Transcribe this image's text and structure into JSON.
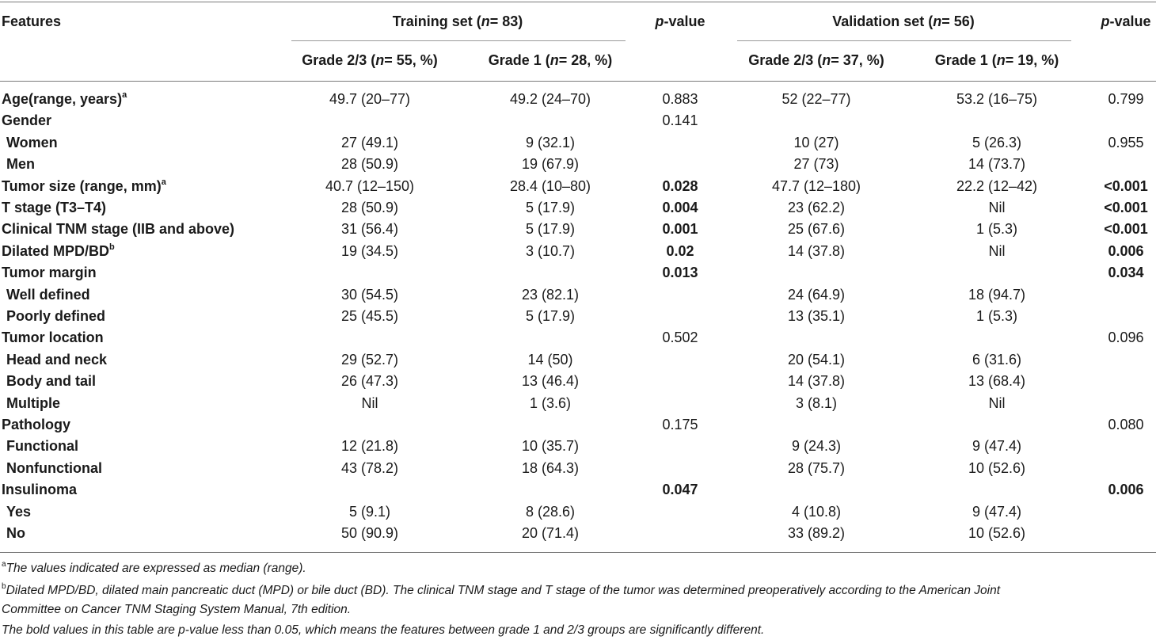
{
  "table": {
    "header": {
      "features": "Features",
      "training_group": "Training set (",
      "training_n": "n",
      "training_rest": " = 83)",
      "validation_group": "Validation set (",
      "validation_n": "n",
      "validation_rest": " = 56)",
      "p_italic": "p",
      "p_rest": "-value",
      "train_g23_a": "Grade 2/3 (",
      "train_g23_n": "n",
      "train_g23_b": " = 55, %)",
      "train_g1_a": "Grade 1 (",
      "train_g1_n": "n",
      "train_g1_b": " = 28, %)",
      "val_g23_a": "Grade 2/3 (",
      "val_g23_n": "n",
      "val_g23_b": " = 37, %)",
      "val_g1_a": "Grade 1 (",
      "val_g1_n": "n",
      "val_g1_b": " = 19, %)"
    },
    "rows": [
      {
        "feature": "Age(range, years)",
        "sup": "a",
        "t23": "49.7 (20–77)",
        "t1": "49.2 (24–70)",
        "tp": "0.883",
        "tp_bold": false,
        "v23": "52 (22–77)",
        "v1": "53.2 (16–75)",
        "vp": "0.799",
        "vp_bold": false
      },
      {
        "feature": "Gender",
        "sup": "",
        "t23": "",
        "t1": "",
        "tp": "0.141",
        "tp_bold": false,
        "v23": "",
        "v1": "",
        "vp": "",
        "vp_bold": false
      },
      {
        "feature": " Women",
        "sup": "",
        "t23": "27 (49.1)",
        "t1": "9 (32.1)",
        "tp": "",
        "tp_bold": false,
        "v23": "10 (27)",
        "v1": "5 (26.3)",
        "vp": "0.955",
        "vp_bold": false
      },
      {
        "feature": " Men",
        "sup": "",
        "t23": "28 (50.9)",
        "t1": "19 (67.9)",
        "tp": "",
        "tp_bold": false,
        "v23": "27 (73)",
        "v1": "14 (73.7)",
        "vp": "",
        "vp_bold": false
      },
      {
        "feature": "Tumor size (range, mm)",
        "sup": "a",
        "t23": "40.7 (12–150)",
        "t1": "28.4 (10–80)",
        "tp": "0.028",
        "tp_bold": true,
        "v23": "47.7 (12–180)",
        "v1": "22.2 (12–42)",
        "vp": "<0.001",
        "vp_bold": true
      },
      {
        "feature": "T stage (T3–T4)",
        "sup": "",
        "t23": "28 (50.9)",
        "t1": "5 (17.9)",
        "tp": "0.004",
        "tp_bold": true,
        "v23": "23 (62.2)",
        "v1": "Nil",
        "vp": "<0.001",
        "vp_bold": true
      },
      {
        "feature": "Clinical TNM stage (IIB and above)",
        "sup": "",
        "t23": "31 (56.4)",
        "t1": "5 (17.9)",
        "tp": "0.001",
        "tp_bold": true,
        "v23": "25 (67.6)",
        "v1": "1 (5.3)",
        "vp": "<0.001",
        "vp_bold": true
      },
      {
        "feature": "Dilated MPD/BD",
        "sup": "b",
        "t23": "19 (34.5)",
        "t1": "3 (10.7)",
        "tp": "0.02",
        "tp_bold": true,
        "v23": "14 (37.8)",
        "v1": "Nil",
        "vp": "0.006",
        "vp_bold": true
      },
      {
        "feature": "Tumor margin",
        "sup": "",
        "t23": "",
        "t1": "",
        "tp": "0.013",
        "tp_bold": true,
        "v23": "",
        "v1": "",
        "vp": "0.034",
        "vp_bold": true
      },
      {
        "feature": " Well defined",
        "sup": "",
        "t23": "30 (54.5)",
        "t1": "23 (82.1)",
        "tp": "",
        "tp_bold": false,
        "v23": "24 (64.9)",
        "v1": "18 (94.7)",
        "vp": "",
        "vp_bold": false
      },
      {
        "feature": " Poorly defined",
        "sup": "",
        "t23": "25 (45.5)",
        "t1": "5 (17.9)",
        "tp": "",
        "tp_bold": false,
        "v23": "13 (35.1)",
        "v1": "1 (5.3)",
        "vp": "",
        "vp_bold": false
      },
      {
        "feature": "Tumor location",
        "sup": "",
        "t23": "",
        "t1": "",
        "tp": "0.502",
        "tp_bold": false,
        "v23": "",
        "v1": "",
        "vp": "0.096",
        "vp_bold": false
      },
      {
        "feature": " Head and neck",
        "sup": "",
        "t23": "29 (52.7)",
        "t1": "14 (50)",
        "tp": "",
        "tp_bold": false,
        "v23": "20 (54.1)",
        "v1": "6 (31.6)",
        "vp": "",
        "vp_bold": false
      },
      {
        "feature": " Body and tail",
        "sup": "",
        "t23": "26 (47.3)",
        "t1": "13 (46.4)",
        "tp": "",
        "tp_bold": false,
        "v23": "14 (37.8)",
        "v1": "13 (68.4)",
        "vp": "",
        "vp_bold": false
      },
      {
        "feature": " Multiple",
        "sup": "",
        "t23": "Nil",
        "t1": "1 (3.6)",
        "tp": "",
        "tp_bold": false,
        "v23": "3 (8.1)",
        "v1": "Nil",
        "vp": "",
        "vp_bold": false
      },
      {
        "feature": "Pathology",
        "sup": "",
        "t23": "",
        "t1": "",
        "tp": "0.175",
        "tp_bold": false,
        "v23": "",
        "v1": "",
        "vp": "0.080",
        "vp_bold": false
      },
      {
        "feature": " Functional",
        "sup": "",
        "t23": "12 (21.8)",
        "t1": "10 (35.7)",
        "tp": "",
        "tp_bold": false,
        "v23": "9 (24.3)",
        "v1": "9 (47.4)",
        "vp": "",
        "vp_bold": false
      },
      {
        "feature": " Nonfunctional",
        "sup": "",
        "t23": "43 (78.2)",
        "t1": "18 (64.3)",
        "tp": "",
        "tp_bold": false,
        "v23": "28 (75.7)",
        "v1": "10 (52.6)",
        "vp": "",
        "vp_bold": false
      },
      {
        "feature": "Insulinoma",
        "sup": "",
        "t23": "",
        "t1": "",
        "tp": "0.047",
        "tp_bold": true,
        "v23": "",
        "v1": "",
        "vp": "0.006",
        "vp_bold": true
      },
      {
        "feature": " Yes",
        "sup": "",
        "t23": "5 (9.1)",
        "t1": "8 (28.6)",
        "tp": "",
        "tp_bold": false,
        "v23": "4 (10.8)",
        "v1": "9 (47.4)",
        "vp": "",
        "vp_bold": false
      },
      {
        "feature": " No",
        "sup": "",
        "t23": "50 (90.9)",
        "t1": "20 (71.4)",
        "tp": "",
        "tp_bold": false,
        "v23": "33 (89.2)",
        "v1": "10 (52.6)",
        "vp": "",
        "vp_bold": false
      }
    ]
  },
  "footnotes": {
    "a_sup": "a",
    "a_text": "The values indicated are expressed as median (range).",
    "b_sup": "b",
    "b_text_line1": "Dilated MPD/BD, dilated main pancreatic duct (MPD) or bile duct (BD). The clinical TNM stage and T stage of the tumor was determined preoperatively according to the American Joint",
    "b_text_line2": "Committee on Cancer TNM Staging System Manual, 7th edition.",
    "bold_note": "The bold values in this table are p-value less than 0.05, which means the features between grade 1 and 2/3 groups are significantly different."
  }
}
